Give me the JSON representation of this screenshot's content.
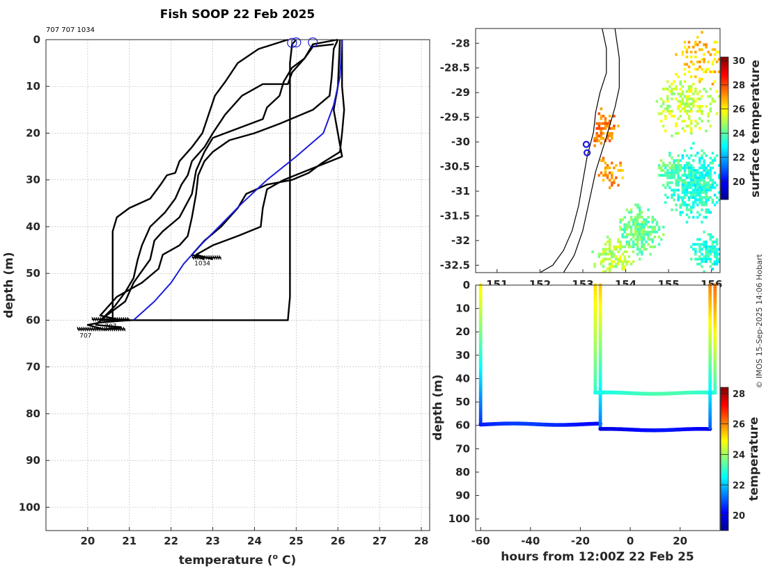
{
  "title": "Fish SOOP 22 Feb 2025",
  "subtitle": "707 707 1034",
  "credit": "© IMOS 15-Sep-2025 14:06 Hobart",
  "chart_data": [
    {
      "type": "line",
      "name": "profiles",
      "xlabel": "temperature (° C)",
      "xlabel_main": "temperature (",
      "xlabel_sup": "o",
      "xlabel_end": " C)",
      "ylabel": "depth (m)",
      "xlim": [
        19,
        28.2
      ],
      "ylim": [
        0,
        105
      ],
      "xticks": [
        20,
        21,
        22,
        23,
        24,
        25,
        26,
        27,
        28
      ],
      "yticks": [
        0,
        10,
        20,
        30,
        40,
        50,
        60,
        70,
        80,
        90,
        100
      ],
      "grid": true,
      "series": [
        {
          "color": "#000000",
          "points": [
            [
              26.1,
              0
            ],
            [
              26.1,
              10
            ],
            [
              26.15,
              15
            ],
            [
              26.1,
              20
            ],
            [
              26.05,
              24
            ],
            [
              25.6,
              26.5
            ],
            [
              25.3,
              28.5
            ],
            [
              24.9,
              30
            ],
            [
              24.3,
              31
            ],
            [
              23.8,
              33
            ],
            [
              23.6,
              36
            ],
            [
              23.2,
              40
            ],
            [
              22.8,
              43
            ],
            [
              22.5,
              46
            ],
            [
              22.8,
              47
            ]
          ]
        },
        {
          "color": "#000000",
          "points": [
            [
              26.05,
              0
            ],
            [
              26.0,
              10
            ],
            [
              25.9,
              15
            ],
            [
              26.0,
              20
            ],
            [
              26.1,
              25
            ],
            [
              25.4,
              27.5
            ],
            [
              24.7,
              30
            ],
            [
              24.3,
              32
            ],
            [
              24.2,
              36
            ],
            [
              24.15,
              40
            ],
            [
              23.6,
              42
            ],
            [
              23.0,
              44
            ],
            [
              22.6,
              46
            ],
            [
              23.0,
              47
            ]
          ]
        },
        {
          "color": "#000000",
          "points": [
            [
              25.0,
              0
            ],
            [
              24.9,
              1
            ],
            [
              24.85,
              5
            ],
            [
              24.85,
              15
            ],
            [
              24.85,
              25
            ],
            [
              24.85,
              35
            ],
            [
              24.85,
              45
            ],
            [
              24.85,
              55
            ],
            [
              24.8,
              60
            ],
            [
              21.0,
              60
            ],
            [
              20.3,
              60.5
            ],
            [
              20.0,
              61
            ],
            [
              20.4,
              62
            ]
          ]
        },
        {
          "color": "#000000",
          "points": [
            [
              25.9,
              1
            ],
            [
              25.4,
              1.5
            ],
            [
              25.2,
              4
            ],
            [
              24.9,
              7
            ],
            [
              24.8,
              9.5
            ],
            [
              24.2,
              9.5
            ],
            [
              23.7,
              12
            ],
            [
              23.3,
              16
            ],
            [
              23.0,
              20
            ],
            [
              22.8,
              23
            ],
            [
              22.5,
              26
            ],
            [
              22.4,
              29
            ],
            [
              22.25,
              31
            ],
            [
              22.1,
              34
            ],
            [
              21.85,
              37
            ],
            [
              21.5,
              40
            ],
            [
              21.3,
              44
            ],
            [
              21.2,
              47
            ],
            [
              21.1,
              51
            ],
            [
              20.9,
              54
            ],
            [
              20.65,
              57
            ],
            [
              20.2,
              61
            ],
            [
              20.8,
              61.5
            ],
            [
              20.4,
              62
            ]
          ]
        },
        {
          "color": "#000000",
          "points": [
            [
              26.0,
              0
            ],
            [
              25.4,
              1
            ],
            [
              25.2,
              4
            ],
            [
              24.9,
              6
            ],
            [
              24.7,
              9
            ],
            [
              24.6,
              12
            ],
            [
              24.3,
              14.5
            ],
            [
              24.2,
              17
            ],
            [
              23.6,
              19
            ],
            [
              23.0,
              21
            ],
            [
              22.8,
              24
            ],
            [
              22.6,
              28
            ],
            [
              22.5,
              33
            ],
            [
              22.2,
              38
            ],
            [
              21.8,
              41
            ],
            [
              21.6,
              43
            ],
            [
              21.5,
              47
            ],
            [
              21.1,
              52
            ],
            [
              20.9,
              56
            ],
            [
              20.3,
              60
            ],
            [
              20.8,
              60
            ],
            [
              21.0,
              60
            ]
          ]
        },
        {
          "color": "#000000",
          "points": [
            [
              26.0,
              0
            ],
            [
              25.9,
              2
            ],
            [
              25.85,
              8
            ],
            [
              25.8,
              12
            ],
            [
              25.4,
              15
            ],
            [
              24.6,
              18
            ],
            [
              24.0,
              20
            ],
            [
              23.4,
              21.5
            ],
            [
              23.0,
              24
            ],
            [
              22.8,
              26
            ],
            [
              22.65,
              29
            ],
            [
              22.6,
              33
            ],
            [
              22.5,
              38
            ],
            [
              22.4,
              42
            ],
            [
              22.2,
              44
            ],
            [
              21.8,
              46
            ],
            [
              21.7,
              49
            ],
            [
              21.3,
              52
            ],
            [
              20.7,
              55
            ],
            [
              20.3,
              59
            ],
            [
              20.8,
              60
            ]
          ]
        },
        {
          "color": "#000000",
          "points": [
            [
              24.8,
              0
            ],
            [
              24.1,
              2
            ],
            [
              23.6,
              5
            ],
            [
              23.3,
              9
            ],
            [
              23.05,
              12
            ],
            [
              22.9,
              16
            ],
            [
              22.75,
              20
            ],
            [
              22.5,
              23
            ],
            [
              22.2,
              26
            ],
            [
              22.1,
              28.5
            ],
            [
              21.9,
              29
            ],
            [
              21.75,
              31
            ],
            [
              21.5,
              34
            ],
            [
              21.0,
              36
            ],
            [
              20.7,
              38
            ],
            [
              20.6,
              41
            ],
            [
              20.6,
              50
            ],
            [
              20.6,
              60
            ]
          ]
        },
        {
          "color": "#1a1adc",
          "points": [
            [
              26.1,
              0
            ],
            [
              26.05,
              8
            ],
            [
              25.9,
              14
            ],
            [
              25.65,
              20
            ],
            [
              25.0,
              25
            ],
            [
              24.3,
              30
            ],
            [
              23.7,
              35
            ],
            [
              23.15,
              40
            ],
            [
              22.7,
              44
            ],
            [
              22.5,
              46
            ],
            [
              22.3,
              48
            ],
            [
              22.0,
              52
            ],
            [
              21.6,
              56
            ],
            [
              21.1,
              60
            ]
          ]
        }
      ],
      "markers": [
        {
          "temp": 24.9,
          "depth": 0.4,
          "shape": "circle",
          "color": "#1a1adc"
        },
        {
          "temp": 25.0,
          "depth": 0.3,
          "shape": "circle",
          "color": "#1a1adc"
        },
        {
          "temp": 25.4,
          "depth": 0.3,
          "shape": "circle",
          "color": "#1a1adc"
        }
      ],
      "annotations": [
        {
          "text": "1034",
          "temp": 22.75,
          "depth": 47.5
        },
        {
          "text": "707",
          "temp": 19.95,
          "depth": 63
        },
        {
          "text": "707",
          "temp": 20.55,
          "depth": 61
        }
      ]
    },
    {
      "type": "heatmap",
      "name": "sea surface temperature map",
      "xlim": [
        150.5,
        156.2
      ],
      "ylim": [
        -32.65,
        -27.7
      ],
      "xticks": [
        151,
        152,
        153,
        154,
        155,
        156
      ],
      "yticks": [
        -28,
        -28.5,
        -29,
        -29.5,
        -30,
        -30.5,
        -31,
        -31.5,
        -32,
        -32.5
      ],
      "colorbar": {
        "label": "surface temperature",
        "min": 18.5,
        "max": 30.3,
        "ticks": [
          20,
          22,
          24,
          26,
          28,
          30
        ]
      },
      "track": [
        [
          153.08,
          -30.05
        ],
        [
          153.1,
          -30.22
        ]
      ]
    },
    {
      "type": "scatter",
      "name": "depth-time section",
      "xlabel": "hours from 12:00Z 22 Feb 25",
      "ylabel": "depth (m)",
      "xlim": [
        -62,
        36
      ],
      "ylim": [
        0,
        105
      ],
      "xticks": [
        -60,
        -40,
        -20,
        0,
        20
      ],
      "yticks": [
        0,
        10,
        20,
        30,
        40,
        50,
        60,
        70,
        80,
        90,
        100
      ],
      "colorbar": {
        "label": "temperature",
        "min": 19,
        "max": 28.4,
        "ticks": [
          20,
          22,
          24,
          26,
          28
        ]
      },
      "segments": [
        {
          "kind": "vertical",
          "hour": -60,
          "from_depth": 0,
          "to_depth": 59.5,
          "temp_top": 25.0,
          "temp_bottom": 20.6
        },
        {
          "kind": "horizontal",
          "from_hour": -60,
          "to_hour": -12,
          "depth": 59.5,
          "temp": 20.5
        },
        {
          "kind": "vertical",
          "hour": -14,
          "from_depth": 0,
          "to_depth": 46,
          "temp_top": 25.2,
          "temp_bottom": 23.0
        },
        {
          "kind": "vertical",
          "hour": -12,
          "from_depth": 0,
          "to_depth": 61.5,
          "temp_top": 25.4,
          "temp_bottom": 21.2
        },
        {
          "kind": "horizontal",
          "from_hour": -14,
          "to_hour": 34,
          "depth": 46.2,
          "temp": 23.0
        },
        {
          "kind": "horizontal",
          "from_hour": -12,
          "to_hour": 32,
          "depth": 61.8,
          "temp": 20.1
        },
        {
          "kind": "vertical",
          "hour": 32,
          "from_depth": 0,
          "to_depth": 61.5,
          "temp_top": 26.0,
          "temp_bottom": 21.0
        },
        {
          "kind": "vertical",
          "hour": 34,
          "from_depth": 0,
          "to_depth": 46,
          "temp_top": 26.2,
          "temp_bottom": 23.0
        }
      ]
    }
  ]
}
